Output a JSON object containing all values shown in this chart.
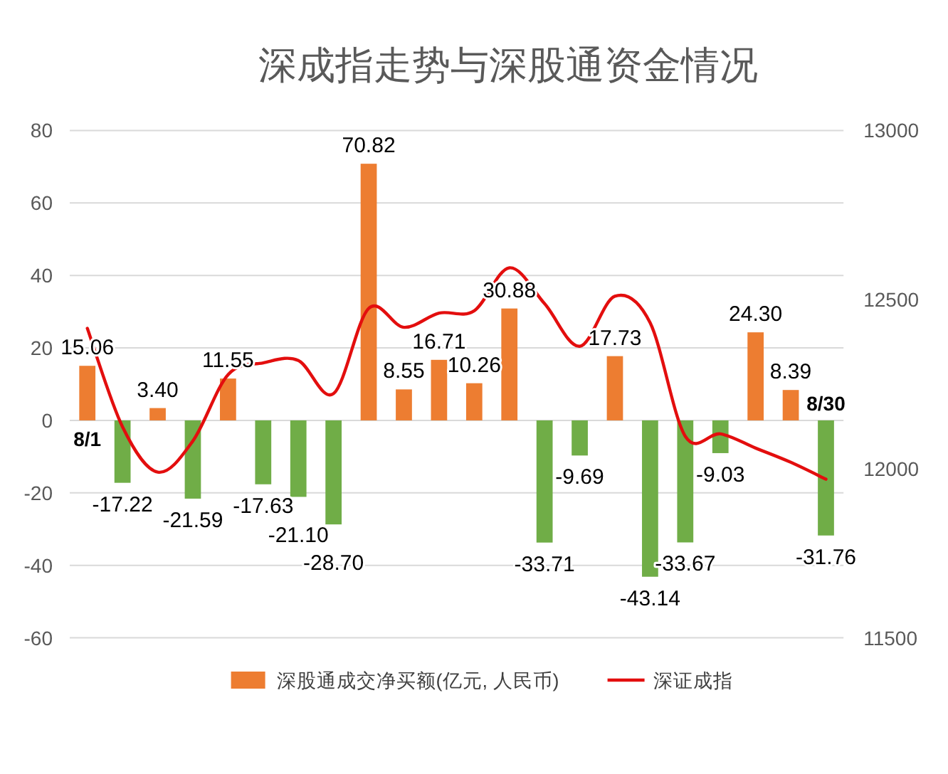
{
  "chart_data": {
    "type": "bar",
    "title": "深成指走势与深股通资金情况",
    "categories": [
      "8/1",
      null,
      null,
      null,
      null,
      null,
      null,
      null,
      null,
      null,
      null,
      null,
      null,
      null,
      null,
      null,
      null,
      null,
      null,
      null,
      null,
      "8/30"
    ],
    "series": [
      {
        "name": "深股通成交净买额(亿元, 人民币)",
        "color": "#ed7d31",
        "colors": [
          "#ed7d31",
          "#70ad47",
          "#ed7d31",
          "#70ad47",
          "#ed7d31",
          "#70ad47",
          "#70ad47",
          "#70ad47",
          "#ed7d31",
          "#ed7d31",
          "#ed7d31",
          "#ed7d31",
          "#ed7d31",
          "#70ad47",
          "#70ad47",
          "#ed7d31",
          "#70ad47",
          "#70ad47",
          "#70ad47",
          "#ed7d31",
          "#ed7d31",
          "#70ad47"
        ],
        "values": [
          15.06,
          -17.22,
          3.4,
          -21.59,
          11.55,
          -17.63,
          -21.1,
          -28.7,
          70.82,
          8.55,
          16.71,
          10.26,
          30.88,
          -33.71,
          -9.69,
          17.73,
          -43.14,
          -33.67,
          -9.03,
          24.3,
          8.39,
          -31.76
        ],
        "value_labels": [
          "15.06",
          "-17.22",
          "3.40",
          "-21.59",
          "11.55",
          "-17.63",
          "-21.10",
          "-28.70",
          "70.82",
          "8.55",
          "16.71",
          "10.26",
          "30.88",
          "-33.71",
          "-9.69",
          "17.73",
          "-43.14",
          "-33.67",
          "-9.03",
          "24.30",
          "8.39",
          "-31.76"
        ]
      },
      {
        "name": "深证成指",
        "type": "line",
        "axis": "y2",
        "color": "#e30e0e",
        "values": [
          12415,
          12124,
          11990,
          12082,
          12278,
          12313,
          12320,
          12222,
          12474,
          12418,
          12460,
          12467,
          12594,
          12488,
          12362,
          12510,
          12432,
          12096,
          12103,
          12061,
          12019,
          11969
        ]
      }
    ],
    "ylim": [
      -60,
      80
    ],
    "yticks": [
      -60,
      -40,
      -20,
      0,
      20,
      40,
      60,
      80
    ],
    "y2lim": [
      11500,
      13000
    ],
    "y2ticks": [
      11500,
      12000,
      12500,
      13000
    ],
    "grid": "y",
    "legend": "bottom"
  }
}
